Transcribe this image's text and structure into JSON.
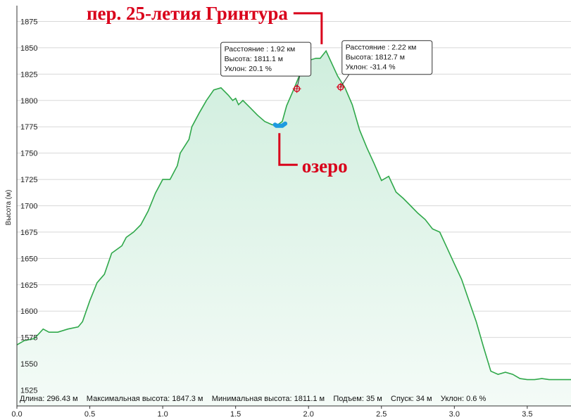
{
  "chart_data": {
    "type": "area",
    "title": "",
    "xlabel": "",
    "ylabel": "Высота (м)",
    "xlim": [
      0,
      3.8
    ],
    "ylim": [
      1510,
      1890
    ],
    "grid": true,
    "x_ticks": [
      "0.0",
      "0.5",
      "1.0",
      "1.5",
      "2.0",
      "2.5",
      "3.0",
      "3.5"
    ],
    "y_ticks": [
      "1525",
      "1550",
      "1575",
      "1600",
      "1625",
      "1650",
      "1675",
      "1700",
      "1725",
      "1750",
      "1775",
      "1800",
      "1825",
      "1850",
      "1875"
    ],
    "x": [
      0.0,
      0.05,
      0.12,
      0.18,
      0.22,
      0.28,
      0.35,
      0.42,
      0.45,
      0.5,
      0.55,
      0.6,
      0.65,
      0.72,
      0.75,
      0.8,
      0.85,
      0.9,
      0.95,
      1.0,
      1.05,
      1.1,
      1.12,
      1.18,
      1.2,
      1.25,
      1.3,
      1.35,
      1.4,
      1.45,
      1.48,
      1.5,
      1.52,
      1.55,
      1.6,
      1.65,
      1.7,
      1.75,
      1.78,
      1.82,
      1.85,
      1.9,
      1.95,
      2.0,
      2.05,
      2.08,
      2.12,
      2.15,
      2.2,
      2.25,
      2.3,
      2.35,
      2.4,
      2.45,
      2.5,
      2.55,
      2.6,
      2.65,
      2.7,
      2.75,
      2.8,
      2.85,
      2.9,
      2.95,
      3.0,
      3.05,
      3.1,
      3.15,
      3.2,
      3.25,
      3.3,
      3.35,
      3.4,
      3.45,
      3.5,
      3.55,
      3.6,
      3.65,
      3.7,
      3.75,
      3.8
    ],
    "y": [
      1568,
      1572,
      1574,
      1583,
      1580,
      1580,
      1583,
      1585,
      1590,
      1610,
      1627,
      1635,
      1655,
      1662,
      1670,
      1675,
      1682,
      1695,
      1712,
      1725,
      1725,
      1738,
      1750,
      1763,
      1775,
      1788,
      1800,
      1810,
      1812,
      1805,
      1800,
      1802,
      1796,
      1800,
      1793,
      1786,
      1780,
      1777,
      1776,
      1780,
      1795,
      1811,
      1828,
      1838,
      1840,
      1840,
      1847,
      1838,
      1823,
      1812,
      1796,
      1772,
      1755,
      1740,
      1724,
      1728,
      1713,
      1707,
      1700,
      1693,
      1687,
      1678,
      1675,
      1660,
      1645,
      1630,
      1610,
      1590,
      1566,
      1543,
      1540,
      1542,
      1540,
      1536,
      1535,
      1535,
      1536,
      1535,
      1535,
      1535,
      1535
    ],
    "highlight": {
      "label": "озеро",
      "x": [
        1.77,
        1.78,
        1.8,
        1.82,
        1.84
      ],
      "y": [
        1777,
        1776,
        1776,
        1776,
        1778
      ]
    },
    "markers": [
      {
        "x": 1.92,
        "y": 1811.1,
        "lines": [
          "Расстояние  : 1.92 км",
          "Высота: 1811.1 м",
          "Уклон: 20.1 %"
        ]
      },
      {
        "x": 2.22,
        "y": 1812.7,
        "lines": [
          "Расстояние  : 2.22 км",
          "Высота: 1812.7 м",
          "Уклон: -31.4 %"
        ]
      }
    ],
    "annotations": [
      {
        "text": "пер. 25-летия Гринтура",
        "x": 2.09,
        "y": 1848
      },
      {
        "text": "озеро",
        "x": 1.8,
        "y": 1777
      }
    ],
    "stats": "Длина: 296.43 м    Максимальная высота: 1847.3 м    Минимальная высота: 1811.1 м    Подъем: 35 м    Спуск: 34 м    Уклон: 0.6 %",
    "colors": {
      "line": "#2fa84a",
      "fill_top": "#cfeedd",
      "fill_bottom": "#f4fbf7",
      "grid": "#d8d8d8",
      "lake": "#1e9be0",
      "annotation": "#d9001b",
      "marker": "#d9001b"
    }
  }
}
